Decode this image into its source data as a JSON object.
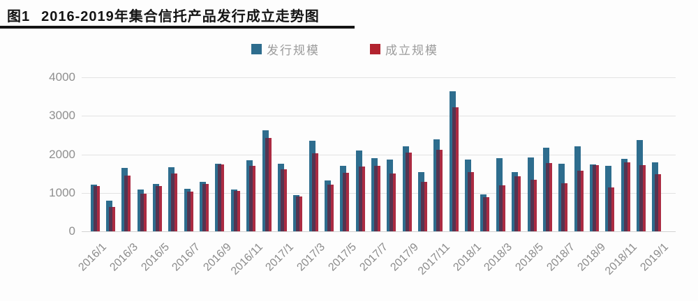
{
  "page": {
    "figure_label": "图1",
    "title": "2016-2019年集合信托产品发行成立走势图"
  },
  "chart_data": {
    "type": "bar",
    "title": "2016-2019年集合信托产品发行成立走势图",
    "categories": [
      "2016/1",
      "2016/2",
      "2016/3",
      "2016/4",
      "2016/5",
      "2016/6",
      "2016/7",
      "2016/8",
      "2016/9",
      "2016/10",
      "2016/11",
      "2016/12",
      "2017/1",
      "2017/2",
      "2017/3",
      "2017/4",
      "2017/5",
      "2017/6",
      "2017/7",
      "2017/8",
      "2017/9",
      "2017/10",
      "2017/11",
      "2017/12",
      "2018/1",
      "2018/2",
      "2018/3",
      "2018/4",
      "2018/5",
      "2018/6",
      "2018/7",
      "2018/8",
      "2018/9",
      "2018/10",
      "2018/11",
      "2018/12",
      "2019/1"
    ],
    "series": [
      {
        "name": "发行规模",
        "color": "#2e6d8e",
        "values": [
          1210,
          790,
          1640,
          1080,
          1230,
          1660,
          1100,
          1290,
          1750,
          1080,
          1850,
          2620,
          1750,
          950,
          2360,
          1330,
          1700,
          2100,
          1900,
          1870,
          2200,
          1530,
          2390,
          3640,
          1870,
          960,
          1900,
          1540,
          1920,
          2170,
          1750,
          2210,
          1730,
          1700,
          1880,
          2370,
          1790
        ]
      },
      {
        "name": "成立规模",
        "color": "#ab2b42",
        "values": [
          1170,
          640,
          1440,
          970,
          1180,
          1500,
          1030,
          1240,
          1730,
          1050,
          1710,
          2430,
          1620,
          900,
          2020,
          1210,
          1520,
          1690,
          1700,
          1500,
          2050,
          1280,
          2120,
          3220,
          1540,
          880,
          1200,
          1430,
          1340,
          1780,
          1250,
          1570,
          1720,
          1140,
          1790,
          1720,
          1480
        ]
      }
    ],
    "legend_swatch_colors": {
      "issuance": "#2e6d8e",
      "establishment": "#b2232f"
    },
    "overlap_color": "#553450",
    "ylim": [
      0,
      4000
    ],
    "yticks": [
      0,
      1000,
      2000,
      3000,
      4000
    ],
    "x_tick_labels": [
      "2016/1",
      "2016/3",
      "2016/5",
      "2016/7",
      "2016/9",
      "2016/11",
      "2017/1",
      "2017/3",
      "2017/5",
      "2017/7",
      "2017/9",
      "2017/11",
      "2018/1",
      "2018/3",
      "2018/5",
      "2018/7",
      "2018/9",
      "2018/11",
      "2019/1"
    ],
    "x_tick_step": 2,
    "grid": true,
    "legend_position": "top"
  }
}
